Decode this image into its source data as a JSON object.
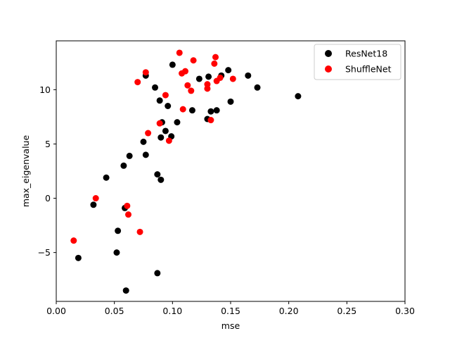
{
  "chart_data": {
    "type": "scatter",
    "xlabel": "mse",
    "ylabel": "max_eigenvalue",
    "xlim": [
      0.0,
      0.3
    ],
    "ylim": [
      -9.5,
      14.5
    ],
    "xticks": [
      "0.00",
      "0.05",
      "0.10",
      "0.15",
      "0.20",
      "0.25",
      "0.30"
    ],
    "yticks": [
      "−5",
      "0",
      "5",
      "10"
    ],
    "xtick_values": [
      0.0,
      0.05,
      0.1,
      0.15,
      0.2,
      0.25,
      0.3
    ],
    "ytick_values": [
      -5,
      0,
      5,
      10
    ],
    "grid": false,
    "legend_position": "top-right",
    "series": [
      {
        "name": "ResNet18",
        "color": "#000000",
        "points": [
          [
            0.019,
            -5.5
          ],
          [
            0.032,
            -0.6
          ],
          [
            0.043,
            1.9
          ],
          [
            0.052,
            -5.0
          ],
          [
            0.053,
            -3.0
          ],
          [
            0.058,
            3.0
          ],
          [
            0.059,
            -0.9
          ],
          [
            0.06,
            -8.5
          ],
          [
            0.063,
            3.9
          ],
          [
            0.075,
            5.2
          ],
          [
            0.077,
            4.0
          ],
          [
            0.077,
            11.3
          ],
          [
            0.085,
            10.2
          ],
          [
            0.087,
            2.2
          ],
          [
            0.087,
            -6.9
          ],
          [
            0.089,
            9.0
          ],
          [
            0.09,
            1.7
          ],
          [
            0.09,
            5.6
          ],
          [
            0.091,
            7.0
          ],
          [
            0.094,
            6.2
          ],
          [
            0.096,
            8.5
          ],
          [
            0.099,
            5.7
          ],
          [
            0.1,
            12.3
          ],
          [
            0.104,
            7.0
          ],
          [
            0.117,
            8.1
          ],
          [
            0.123,
            11.0
          ],
          [
            0.13,
            7.3
          ],
          [
            0.131,
            11.2
          ],
          [
            0.133,
            8.0
          ],
          [
            0.138,
            8.1
          ],
          [
            0.142,
            11.3
          ],
          [
            0.148,
            11.8
          ],
          [
            0.15,
            8.9
          ],
          [
            0.165,
            11.3
          ],
          [
            0.173,
            10.2
          ],
          [
            0.208,
            9.4
          ]
        ]
      },
      {
        "name": "ShuffleNet",
        "color": "#ff0000",
        "points": [
          [
            0.015,
            -3.9
          ],
          [
            0.034,
            0.0
          ],
          [
            0.061,
            -0.7
          ],
          [
            0.062,
            -1.5
          ],
          [
            0.07,
            10.7
          ],
          [
            0.072,
            -3.1
          ],
          [
            0.077,
            11.6
          ],
          [
            0.079,
            6.0
          ],
          [
            0.089,
            6.9
          ],
          [
            0.094,
            9.5
          ],
          [
            0.097,
            5.3
          ],
          [
            0.106,
            13.4
          ],
          [
            0.108,
            11.5
          ],
          [
            0.109,
            8.2
          ],
          [
            0.111,
            11.7
          ],
          [
            0.113,
            10.4
          ],
          [
            0.116,
            9.9
          ],
          [
            0.118,
            12.7
          ],
          [
            0.13,
            10.5
          ],
          [
            0.13,
            10.1
          ],
          [
            0.133,
            7.2
          ],
          [
            0.136,
            12.4
          ],
          [
            0.137,
            13.0
          ],
          [
            0.138,
            10.8
          ],
          [
            0.141,
            11.1
          ],
          [
            0.152,
            11.0
          ]
        ]
      }
    ]
  }
}
